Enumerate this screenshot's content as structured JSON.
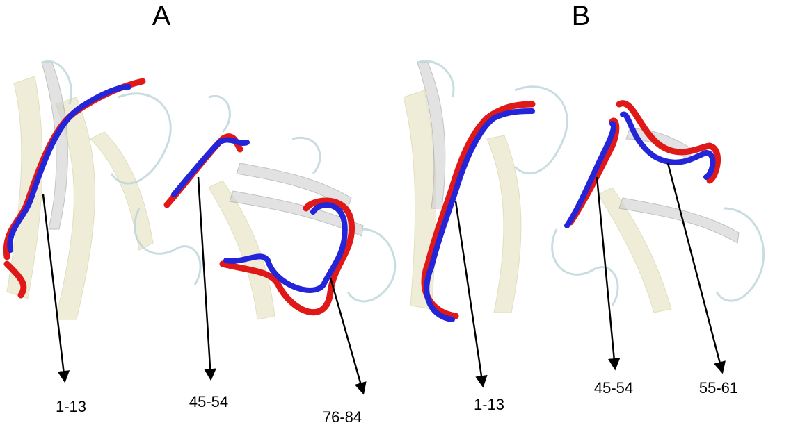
{
  "panels": [
    {
      "label": "A",
      "annotations": [
        "1-13",
        "45-54",
        "76-84"
      ]
    },
    {
      "label": "B",
      "annotations": [
        "1-13",
        "45-54",
        "55-61"
      ]
    }
  ]
}
